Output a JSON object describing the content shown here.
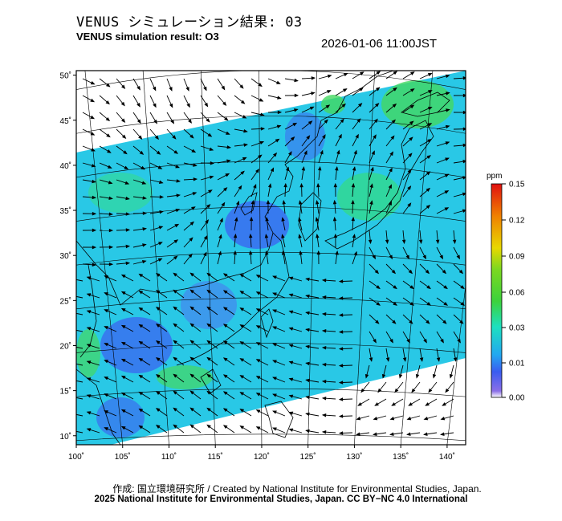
{
  "header": {
    "title_jp": "VENUS シミュレーション結果: 03",
    "title_en": "VENUS simulation result: O3",
    "timestamp": "2026-01-06 11:00JST"
  },
  "map": {
    "lon_ticks": [
      "100˚",
      "105˚",
      "110˚",
      "115˚",
      "120˚",
      "125˚",
      "130˚",
      "135˚",
      "140˚"
    ],
    "lat_ticks": [
      "10˚",
      "15˚",
      "20˚",
      "25˚",
      "30˚",
      "35˚",
      "40˚",
      "45˚",
      "50˚"
    ],
    "lon_range": [
      100,
      142
    ],
    "lat_range": [
      9,
      50.5
    ]
  },
  "colorbar": {
    "unit": "ppm",
    "ticks": [
      "0.00",
      "0.01",
      "0.03",
      "0.06",
      "0.09",
      "0.12",
      "0.15"
    ],
    "colors": [
      "#ffffff",
      "#3a5cf0",
      "#22a8f0",
      "#1de0c0",
      "#3cd23c",
      "#e8d800",
      "#f08000",
      "#e01010"
    ]
  },
  "footer": {
    "line1": "作成: 国立環境研究所 / Created by National Institute for Environmental Studies, Japan.",
    "line2": "2025 National Institute for Environmental Studies, Japan. CC BY−NC 4.0 International"
  }
}
